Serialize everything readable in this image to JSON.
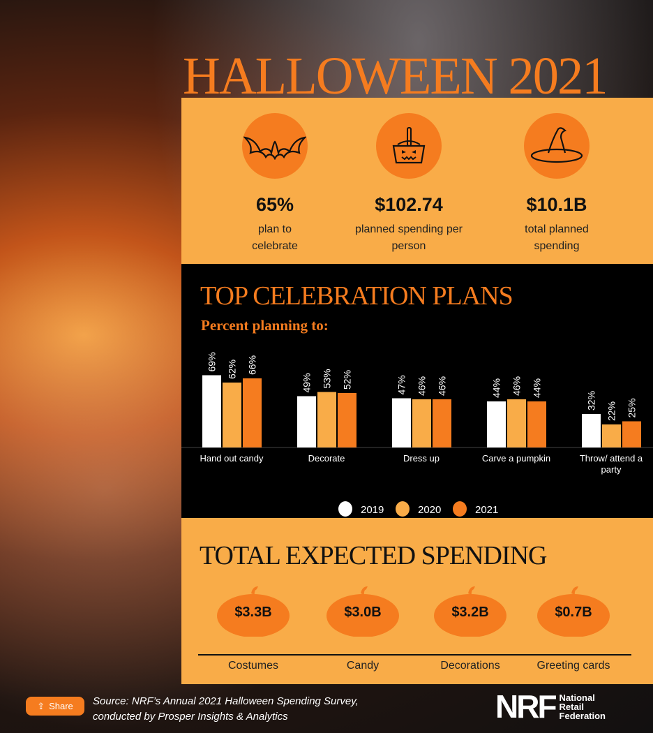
{
  "title": "HALLOWEEN 2021",
  "stats": [
    {
      "icon": "bat-icon",
      "value": "65%",
      "label_1": "plan to",
      "label_2": "celebrate"
    },
    {
      "icon": "pumpkin-basket-icon",
      "value": "$102.74",
      "label_1": "planned spending per",
      "label_2": "person"
    },
    {
      "icon": "witch-hat-icon",
      "value": "$10.1B",
      "label_1": "total planned",
      "label_2": "spending"
    }
  ],
  "plans": {
    "heading": "TOP CELEBRATION PLANS",
    "subheading": "Percent planning to:"
  },
  "chart_data": {
    "type": "bar",
    "categories": [
      "Hand out candy",
      "Decorate",
      "Dress up",
      "Carve a pumpkin",
      "Throw/ attend a party"
    ],
    "series": [
      {
        "name": "2019",
        "color": "#ffffff",
        "values": [
          69,
          49,
          47,
          44,
          32
        ]
      },
      {
        "name": "2020",
        "color": "#f9ac48",
        "values": [
          62,
          53,
          46,
          46,
          22
        ]
      },
      {
        "name": "2021",
        "color": "#f57c1f",
        "values": [
          66,
          52,
          46,
          44,
          25
        ]
      }
    ],
    "value_suffix": "%",
    "legend": "bottom",
    "grid": false,
    "ylim": [
      0,
      100
    ]
  },
  "spending": {
    "heading": "TOTAL EXPECTED SPENDING",
    "items": [
      {
        "value": "$3.3B",
        "label": "Costumes"
      },
      {
        "value": "$3.0B",
        "label": "Candy"
      },
      {
        "value": "$3.2B",
        "label": "Decorations"
      },
      {
        "value": "$0.7B",
        "label": "Greeting cards"
      }
    ]
  },
  "footer": {
    "share": "Share",
    "source_1": "Source: NRF’s Annual 2021 Halloween Spending Survey,",
    "source_2": "conducted by Prosper Insights & Analytics",
    "logo": "NRF",
    "logo_1": "National",
    "logo_2": "Retail",
    "logo_3": "Federation"
  },
  "colors": {
    "orange": "#f57c1f",
    "light_orange": "#f9ac48"
  }
}
